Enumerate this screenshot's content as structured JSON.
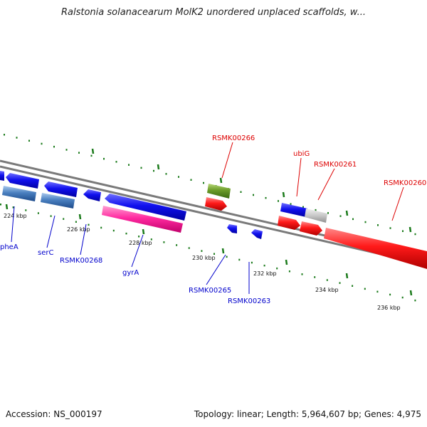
{
  "title": "Ralstonia solanacearum MolK2 unordered unplaced scaffolds, w...",
  "footer": {
    "accession": "Accession: NS_000197",
    "summary": "Topology: linear; Length: 5,964,607 bp; Genes: 4,975"
  },
  "ticks": [
    "224 kbp",
    "226 kbp",
    "228 kbp",
    "230 kbp",
    "232 kbp",
    "234 kbp",
    "236 kbp"
  ],
  "genes_forward": [
    "RSMK00266",
    "ubiG",
    "RSMK00261",
    "RSMK00260"
  ],
  "genes_reverse": [
    "pheA",
    "serC",
    "RSMK00268",
    "gyrA",
    "RSMK00265",
    "RSMK00263"
  ],
  "colors": {
    "forward_label": "#dd0000",
    "reverse_label": "#0000cc",
    "tick": "#1a7a1a",
    "backbone": "#808080"
  }
}
